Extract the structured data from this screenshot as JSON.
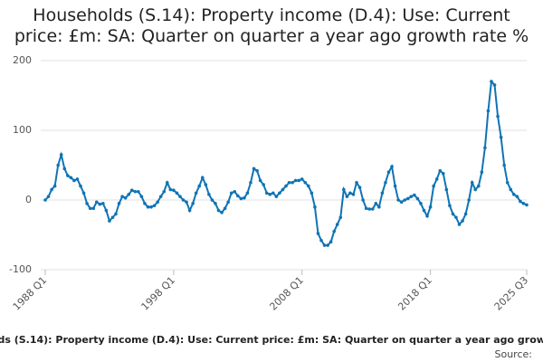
{
  "chart_data": {
    "type": "line",
    "title": "Households (S.14): Property income (D.4): Use: Current price: £m: SA: Quarter on quarter a year ago growth rate %",
    "source": "Source:",
    "categories": [
      "1988 Q1",
      null,
      null,
      null,
      null,
      null,
      null,
      null,
      null,
      null,
      null,
      null,
      null,
      null,
      null,
      null,
      null,
      null,
      null,
      null,
      null,
      null,
      null,
      null,
      null,
      null,
      null,
      null,
      null,
      null,
      null,
      null,
      null,
      null,
      null,
      null,
      null,
      null,
      null,
      null,
      "1998 Q1",
      null,
      null,
      null,
      null,
      null,
      null,
      null,
      null,
      null,
      null,
      null,
      null,
      null,
      null,
      null,
      null,
      null,
      null,
      null,
      null,
      null,
      null,
      null,
      null,
      null,
      null,
      null,
      null,
      null,
      null,
      null,
      null,
      null,
      null,
      null,
      null,
      null,
      null,
      null,
      "2008 Q1",
      null,
      null,
      null,
      null,
      null,
      null,
      null,
      null,
      null,
      null,
      null,
      null,
      null,
      null,
      null,
      null,
      null,
      null,
      null,
      null,
      null,
      null,
      null,
      null,
      null,
      null,
      null,
      null,
      null,
      null,
      null,
      null,
      null,
      null,
      null,
      null,
      null,
      null,
      null,
      "2018 Q1",
      null,
      null,
      null,
      null,
      null,
      null,
      null,
      null,
      null,
      null,
      null,
      null,
      null,
      null,
      null,
      null,
      null,
      null,
      null,
      null,
      null,
      null,
      null,
      null,
      null,
      null,
      null,
      null,
      null,
      "2025 Q3"
    ],
    "series": [
      {
        "name": "Households (S.14): Property income (D.4): Use: Current price: £m: SA: Quarter on quarter a year ago growth rate %",
        "color": "#0f74b5",
        "values": [
          0,
          5,
          15,
          20,
          50,
          65,
          45,
          35,
          32,
          28,
          30,
          20,
          10,
          -5,
          -12,
          -12,
          -3,
          -6,
          -5,
          -15,
          -30,
          -25,
          -20,
          -5,
          5,
          3,
          8,
          14,
          12,
          12,
          5,
          -5,
          -10,
          -10,
          -8,
          -3,
          5,
          12,
          25,
          15,
          14,
          10,
          5,
          0,
          -3,
          -15,
          -5,
          10,
          20,
          32,
          22,
          8,
          0,
          -5,
          -15,
          -18,
          -12,
          -3,
          10,
          12,
          6,
          2,
          3,
          10,
          25,
          45,
          42,
          28,
          22,
          10,
          8,
          10,
          5,
          10,
          15,
          20,
          25,
          25,
          28,
          28,
          30,
          25,
          20,
          10,
          -10,
          -48,
          -58,
          -65,
          -65,
          -60,
          -45,
          -35,
          -25,
          15,
          5,
          10,
          8,
          25,
          18,
          0,
          -12,
          -13,
          -13,
          -5,
          -10,
          10,
          25,
          40,
          48,
          20,
          0,
          -3,
          0,
          2,
          5,
          7,
          2,
          -5,
          -15,
          -23,
          -10,
          20,
          30,
          42,
          38,
          15,
          -8,
          -20,
          -25,
          -35,
          -30,
          -20,
          0,
          25,
          15,
          20,
          40,
          75,
          128,
          170,
          165,
          120,
          90,
          50,
          25,
          15,
          8,
          5,
          -2,
          -5,
          -7
        ]
      }
    ],
    "ylim": [
      -100,
      200
    ],
    "yticks": [
      -100,
      0,
      100,
      200
    ],
    "grid": true
  }
}
